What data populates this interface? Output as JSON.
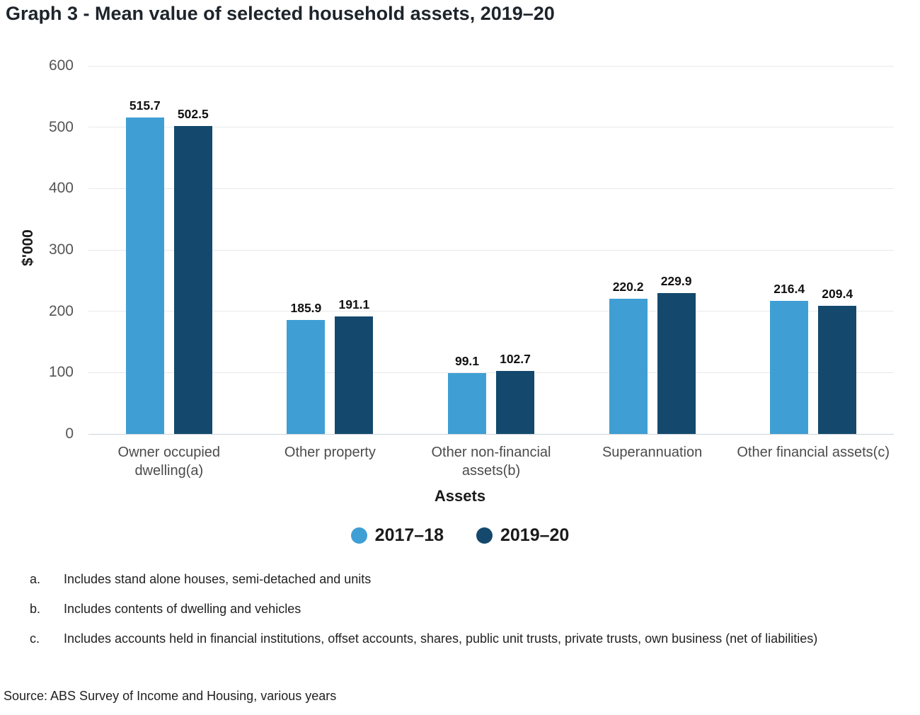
{
  "title": "Graph 3 - Mean value of selected household assets, 2019–20",
  "chart_data": {
    "type": "bar",
    "categories": [
      "Owner occupied dwelling(a)",
      "Other property",
      "Other non-financial assets(b)",
      "Superannuation",
      "Other financial assets(c)"
    ],
    "series": [
      {
        "name": "2017–18",
        "color": "#3f9fd4",
        "values": [
          515.7,
          185.9,
          99.1,
          220.2,
          216.4
        ]
      },
      {
        "name": "2019–20",
        "color": "#14496d",
        "values": [
          502.5,
          191.1,
          102.7,
          229.9,
          209.4
        ]
      }
    ],
    "xlabel": "Assets",
    "ylabel": "$'000",
    "ylim": [
      0,
      600
    ],
    "ytick_step": 100,
    "yticks": [
      0,
      100,
      200,
      300,
      400,
      500,
      600
    ],
    "grid": true,
    "legend_position": "bottom",
    "data_labels": true
  },
  "colors": {
    "series_2017_18": "#3f9fd4",
    "series_2019_20": "#14496d",
    "gridline": "#e7e9eb",
    "axis_line": "#ccd4da",
    "tick_text": "#555555",
    "category_text": "#4b4b4b"
  },
  "footnotes": [
    {
      "marker": "a.",
      "text": "Includes stand alone houses, semi-detached and units"
    },
    {
      "marker": "b.",
      "text": "Includes contents of dwelling and vehicles"
    },
    {
      "marker": "c.",
      "text": "Includes accounts held in financial institutions, offset accounts, shares, public unit trusts, private trusts, own business (net of liabilities)"
    }
  ],
  "source": "Source: ABS Survey of Income and Housing, various years"
}
